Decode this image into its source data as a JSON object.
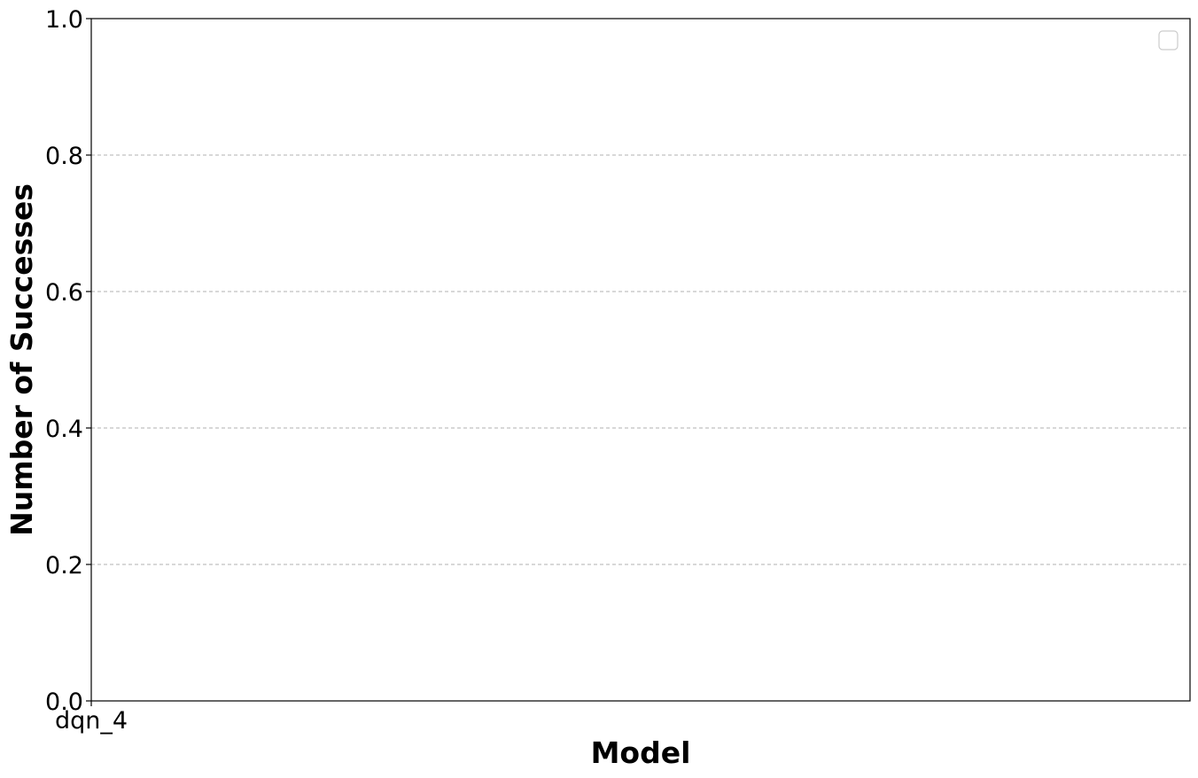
{
  "chart_data": {
    "type": "bar",
    "title": "",
    "xlabel": "Model",
    "ylabel": "Number of Successes",
    "categories": [
      "dqn_4"
    ],
    "series": [],
    "ylim": [
      0,
      1.0
    ],
    "yticks": [
      0.0,
      0.2,
      0.4,
      0.6,
      0.8,
      1.0
    ],
    "ytick_labels": [
      "0.0",
      "0.2",
      "0.4",
      "0.6",
      "0.8",
      "1.0"
    ],
    "grid": "y-dashed",
    "legend": {
      "placement": "top-right",
      "entries": []
    },
    "colors": {
      "grid": "#b0b0b0",
      "axes": "#000000",
      "legend_border": "#cccccc"
    }
  }
}
